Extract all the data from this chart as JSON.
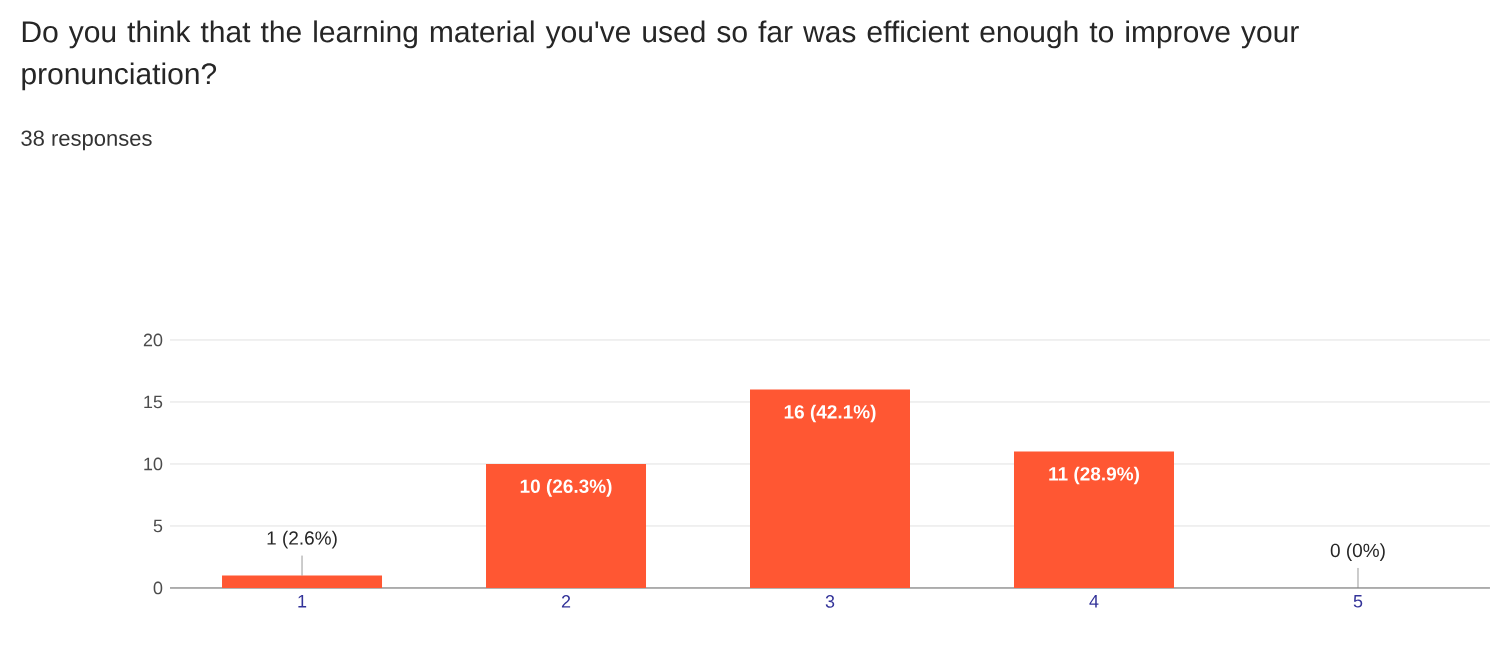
{
  "chart_data": {
    "type": "bar",
    "title": "Do you think that the learning material you've used so far was efficient enough to improve your pronunciation?",
    "subtitle": "38 responses",
    "categories": [
      "1",
      "2",
      "3",
      "4",
      "5"
    ],
    "values": [
      1,
      10,
      16,
      11,
      0
    ],
    "value_labels": [
      "1 (2.6%)",
      "10 (26.3%)",
      "16 (42.1%)",
      "11 (28.9%)",
      "0 (0%)"
    ],
    "color": "#ff5733",
    "ylim": [
      0,
      20
    ],
    "yticks": [
      0,
      5,
      10,
      15,
      20
    ],
    "grid": "y"
  }
}
